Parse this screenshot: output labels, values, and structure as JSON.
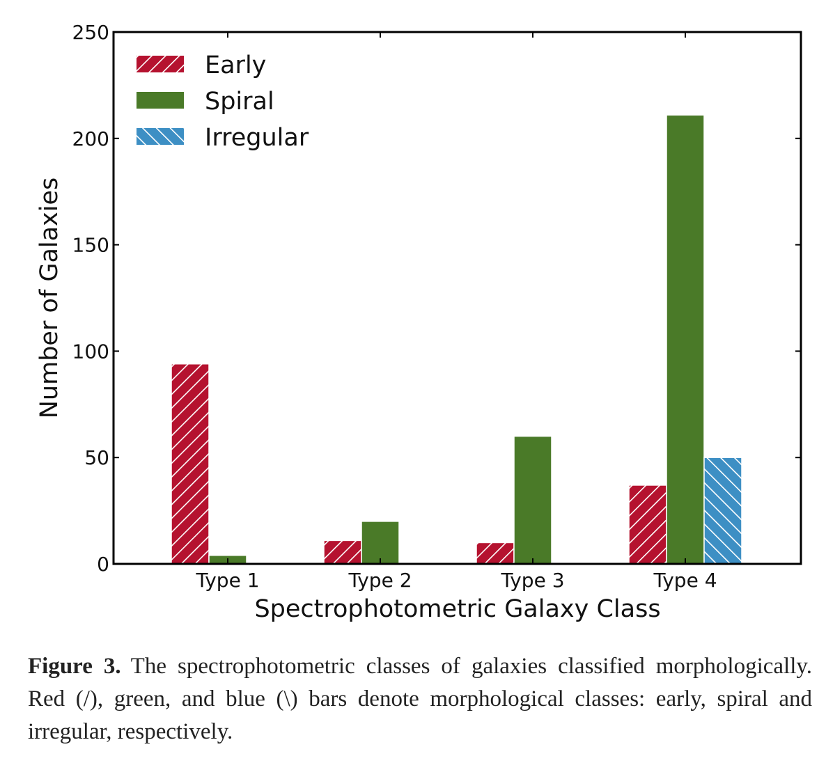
{
  "chart_data": {
    "type": "bar",
    "xlabel": "Spectrophotometric Galaxy Class",
    "ylabel": "Number of Galaxies",
    "ylim": [
      0,
      250
    ],
    "yticks": [
      "0",
      "50",
      "100",
      "150",
      "200",
      "250"
    ],
    "categories": [
      "Type 1",
      "Type 2",
      "Type 3",
      "Type 4"
    ],
    "grid": false,
    "legend_position": "top-left",
    "series": [
      {
        "name": "Early",
        "values": [
          94,
          11,
          10,
          37
        ],
        "color": "#b5122f",
        "hatch": "/"
      },
      {
        "name": "Spiral",
        "values": [
          4,
          20,
          60,
          211
        ],
        "color": "#4a7a28",
        "hatch": ""
      },
      {
        "name": "Irregular",
        "values": [
          0,
          0,
          0,
          50
        ],
        "color": "#3d8fc4",
        "hatch": "\\"
      }
    ]
  },
  "caption": {
    "label": "Figure 3.",
    "text": "The spectrophotometric classes of galaxies classified morphologically. Red (/), green, and blue (\\) bars denote morphological classes: early, spiral and irregular, respectively."
  }
}
